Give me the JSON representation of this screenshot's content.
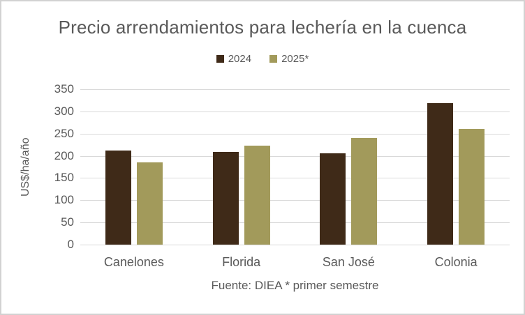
{
  "window": {
    "background": "#ffffff",
    "border_color": "#d2d2d2"
  },
  "chart_data": {
    "type": "bar",
    "title": "Precio arrendamientos para lechería en la cuenca",
    "ylabel": "US$/ha/año",
    "xlabel": "",
    "footnote": "Fuente: DIEA * primer semestre",
    "categories": [
      "Canelones",
      "Florida",
      "San José",
      "Colonia"
    ],
    "series": [
      {
        "name": "2024",
        "color": "#3F2A18",
        "values": [
          212,
          209,
          206,
          319
        ]
      },
      {
        "name": "2025*",
        "color": "#A29A5B",
        "values": [
          185,
          223,
          240,
          260
        ]
      }
    ],
    "ylim": [
      0,
      350
    ],
    "yticks": [
      0,
      50,
      100,
      150,
      200,
      250,
      300,
      350
    ],
    "grid": true,
    "legend_position": "top-center",
    "colors": {
      "grid": "#D9D9D9",
      "text": "#595959"
    }
  }
}
